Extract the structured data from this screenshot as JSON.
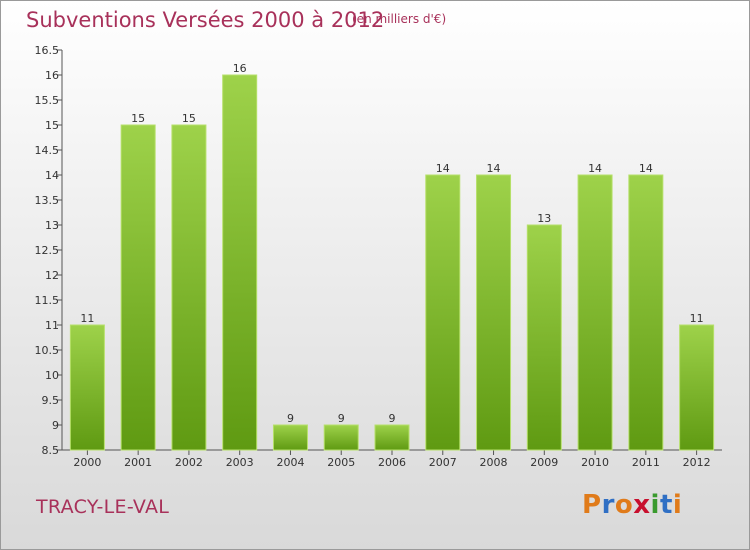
{
  "title": "Subventions Versées 2000 à 2012",
  "unit_note": "(en milliers d'€)",
  "commune": "TRACY-LE-VAL",
  "logo": {
    "letters": [
      "P",
      "r",
      "o",
      "x",
      "i",
      "t",
      "i"
    ],
    "colors": [
      "#e07b1a",
      "#2f6fc4",
      "#e07b1a",
      "#c8102e",
      "#3a9a2e",
      "#2f6fc4",
      "#e07b1a"
    ]
  },
  "colors": {
    "bar_light": "#9ed24a",
    "bar_dark": "#5f9a12",
    "title": "#a8315a"
  },
  "chart_data": {
    "type": "bar",
    "categories": [
      "2000",
      "2001",
      "2002",
      "2003",
      "2004",
      "2005",
      "2006",
      "2007",
      "2008",
      "2009",
      "2010",
      "2011",
      "2012"
    ],
    "values": [
      11,
      15,
      15,
      16,
      9,
      9,
      9,
      14,
      14,
      13,
      14,
      14,
      11
    ],
    "ylim": [
      8.5,
      16.5
    ],
    "yticks": [
      8.5,
      9,
      9.5,
      10,
      10.5,
      11,
      11.5,
      12,
      12.5,
      13,
      13.5,
      14,
      14.5,
      15,
      15.5,
      16,
      16.5
    ],
    "ytick_labels": [
      "8.5",
      "9",
      "9.5",
      "10",
      "10.5",
      "11",
      "11.5",
      "12",
      "12.5",
      "13",
      "13.5",
      "14",
      "14.5",
      "15",
      "15.5",
      "16",
      "16.5"
    ],
    "data_labels": [
      "11",
      "15",
      "15",
      "16",
      "9",
      "9",
      "9",
      "14",
      "14",
      "13",
      "14",
      "14",
      "11"
    ],
    "grid": false
  }
}
